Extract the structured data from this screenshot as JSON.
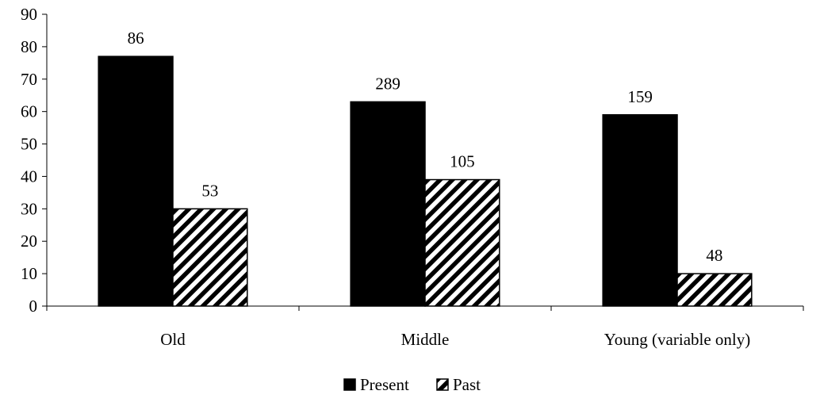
{
  "chart_data": {
    "type": "bar",
    "categories": [
      "Old",
      "Middle",
      "Young (variable only)"
    ],
    "series": [
      {
        "name": "Present",
        "values": [
          77,
          63,
          59
        ],
        "data_labels": [
          "86",
          "289",
          "159"
        ],
        "fill": "solid",
        "color": "#000000"
      },
      {
        "name": "Past",
        "values": [
          30,
          39,
          10
        ],
        "data_labels": [
          "53",
          "105",
          "48"
        ],
        "fill": "hatched",
        "color": "#000000"
      }
    ],
    "yticks": [
      "0",
      "10",
      "20",
      "30",
      "40",
      "50",
      "60",
      "70",
      "80",
      "90"
    ],
    "ylim": [
      0,
      90
    ],
    "grid": false,
    "legend_position": "bottom"
  }
}
